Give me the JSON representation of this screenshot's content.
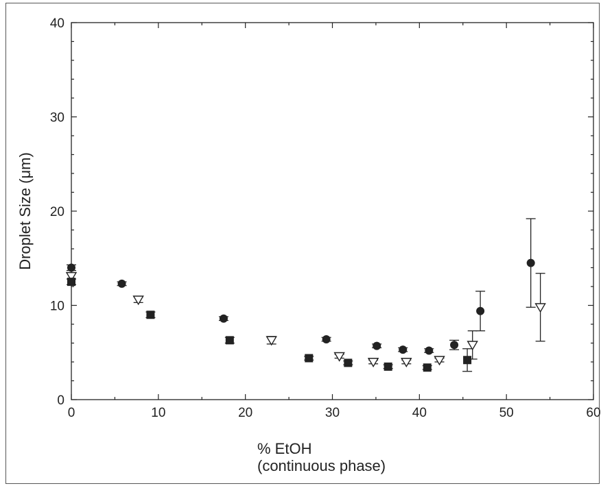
{
  "chart_data": {
    "type": "scatter",
    "title": "",
    "xlabel_line1": "% EtOH",
    "xlabel_line2": "(continuous phase)",
    "ylabel": "Droplet Size (μm)",
    "xlim": [
      0,
      60
    ],
    "ylim": [
      0,
      40
    ],
    "x_ticks": [
      0,
      10,
      20,
      30,
      40,
      50,
      60
    ],
    "y_ticks": [
      0,
      10,
      20,
      30,
      40
    ],
    "grid": false,
    "series": [
      {
        "marker": "filled-circle",
        "color": "#222222",
        "points": [
          {
            "x": 0,
            "y": 14.0,
            "err": 0.3
          },
          {
            "x": 5.8,
            "y": 12.3,
            "err": 0.2
          },
          {
            "x": 17.5,
            "y": 8.6,
            "err": 0.2
          },
          {
            "x": 29.3,
            "y": 6.4,
            "err": 0.2
          },
          {
            "x": 35.1,
            "y": 5.7,
            "err": 0.2
          },
          {
            "x": 38.1,
            "y": 5.3,
            "err": 0.2
          },
          {
            "x": 41.1,
            "y": 5.2,
            "err": 0.2
          },
          {
            "x": 44.0,
            "y": 5.8,
            "err": 0.5
          },
          {
            "x": 47.0,
            "y": 9.4,
            "err": 2.1
          },
          {
            "x": 52.8,
            "y": 14.5,
            "err": 4.7
          }
        ]
      },
      {
        "marker": "open-triangle-down",
        "color": "#222222",
        "points": [
          {
            "x": 0,
            "y": 13.1,
            "err": 0.3
          },
          {
            "x": 7.7,
            "y": 10.6,
            "err": 0.3
          },
          {
            "x": 23.0,
            "y": 6.3,
            "err": 0.4
          },
          {
            "x": 30.8,
            "y": 4.6,
            "err": 0.2
          },
          {
            "x": 34.7,
            "y": 4.0,
            "err": 0.2
          },
          {
            "x": 38.5,
            "y": 4.0,
            "err": 0.2
          },
          {
            "x": 42.3,
            "y": 4.2,
            "err": 0.2
          },
          {
            "x": 46.1,
            "y": 5.8,
            "err": 1.5
          },
          {
            "x": 53.9,
            "y": 9.8,
            "err": 3.6
          }
        ]
      },
      {
        "marker": "filled-square",
        "color": "#222222",
        "points": [
          {
            "x": 0,
            "y": 12.5,
            "err": 0.3
          },
          {
            "x": 9.1,
            "y": 9.0,
            "err": 0.3
          },
          {
            "x": 18.2,
            "y": 6.3,
            "err": 0.3
          },
          {
            "x": 27.3,
            "y": 4.4,
            "err": 0.2
          },
          {
            "x": 31.8,
            "y": 3.9,
            "err": 0.2
          },
          {
            "x": 36.4,
            "y": 3.5,
            "err": 0.2
          },
          {
            "x": 40.9,
            "y": 3.4,
            "err": 0.2
          },
          {
            "x": 45.5,
            "y": 4.2,
            "err": 1.2
          }
        ]
      }
    ]
  }
}
